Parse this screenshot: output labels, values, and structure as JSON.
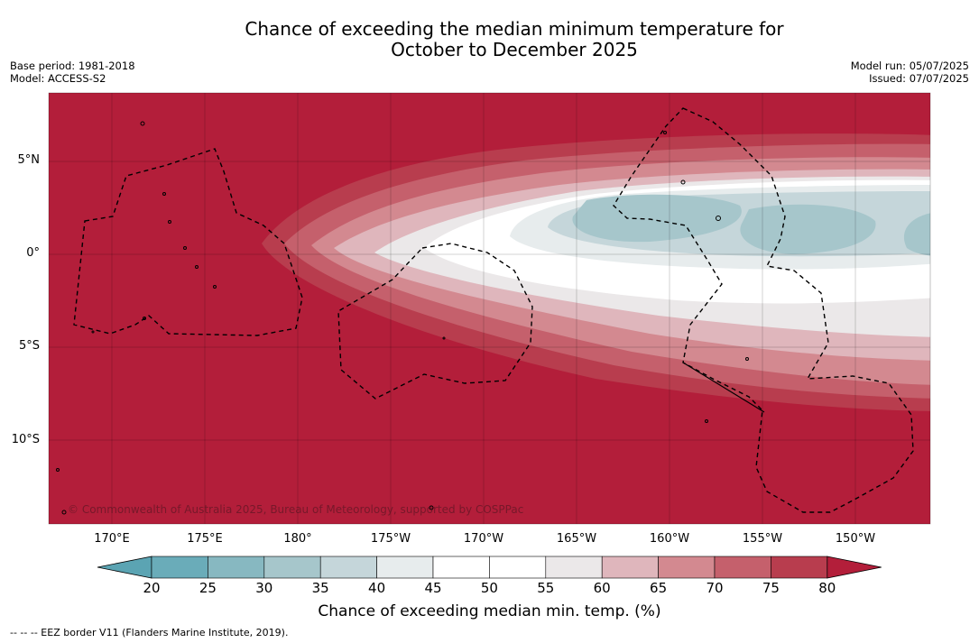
{
  "header": {
    "title_line1": "Chance of exceeding the median minimum temperature for",
    "title_line2": "October to December 2025",
    "base_period": "Base period: 1981-2018",
    "model": "Model: ACCESS-S2",
    "model_run": "Model run: 05/07/2025",
    "issued": "Issued: 07/07/2025"
  },
  "map": {
    "lat_labels": [
      "5°N",
      "0°",
      "5°S",
      "10°S"
    ],
    "lon_labels": [
      "170°E",
      "175°E",
      "180°",
      "175°W",
      "170°W",
      "165°W",
      "160°W",
      "155°W",
      "150°W"
    ],
    "copyright": "© Commonwealth of Australia 2025, Bureau of Meteorology, supported by COSPPac",
    "background_color": "#b31e3a"
  },
  "legend": {
    "tick_labels": [
      "20",
      "25",
      "30",
      "35",
      "40",
      "45",
      "50",
      "55",
      "60",
      "65",
      "70",
      "75",
      "80"
    ],
    "colors": [
      "#5ba4b3",
      "#6aacb9",
      "#87b8c1",
      "#a6c6cb",
      "#c5d6da",
      "#e7eced",
      "#ffffff",
      "#ffffff",
      "#ebe8e9",
      "#dfb6bc",
      "#d38990",
      "#c5606c",
      "#b83d4e",
      "#b31e3a"
    ],
    "title": "Chance of exceeding median min. temp. (%)"
  },
  "footer": {
    "eez_note": "--  --  -- EEZ border V11 (Flanders Marine Institute, 2019)."
  }
}
